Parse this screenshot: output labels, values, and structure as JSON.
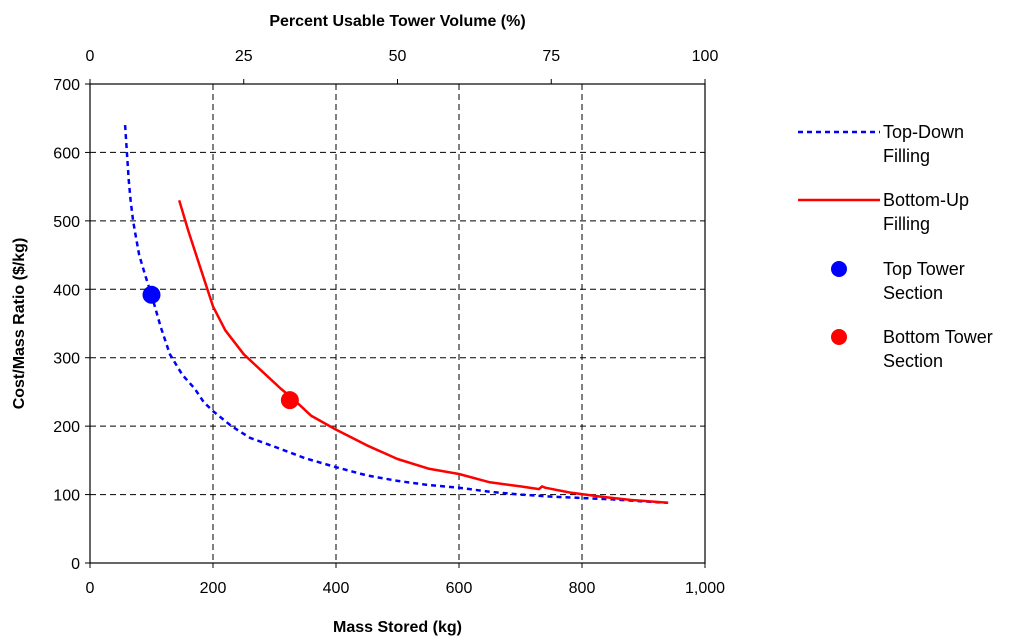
{
  "chart_data": {
    "type": "line",
    "xlabel": "Mass Stored (kg)",
    "ylabel": "Cost/Mass Ratio ($/kg)",
    "x2label": "Percent Usable Tower Volume (%)",
    "xlim": [
      0,
      1000
    ],
    "ylim": [
      0,
      700
    ],
    "x2lim": [
      0,
      100
    ],
    "x_ticks": [
      0,
      200,
      400,
      600,
      800,
      1000
    ],
    "x_tick_labels": [
      "0",
      "200",
      "400",
      "600",
      "800",
      "1,000"
    ],
    "y_ticks": [
      0,
      100,
      200,
      300,
      400,
      500,
      600,
      700
    ],
    "y_tick_labels": [
      "0",
      "100",
      "200",
      "300",
      "400",
      "500",
      "600",
      "700"
    ],
    "x2_ticks": [
      0,
      25,
      50,
      75,
      100
    ],
    "x2_tick_labels": [
      "0",
      "25",
      "50",
      "75",
      "100"
    ],
    "grid": true,
    "legend_position": "right",
    "series": [
      {
        "name": "Top-Down Filling",
        "kind": "line",
        "style": "dashed",
        "color": "#0000ff",
        "x": [
          57,
          60,
          63,
          66,
          70,
          75,
          80,
          90,
          100,
          115,
          130,
          150,
          170,
          185,
          200,
          230,
          260,
          300,
          350,
          400,
          450,
          500,
          550,
          600,
          650,
          700,
          750,
          800,
          850,
          900,
          940
        ],
        "y": [
          640,
          600,
          560,
          530,
          500,
          475,
          450,
          420,
          392,
          345,
          305,
          275,
          255,
          235,
          222,
          200,
          183,
          170,
          153,
          140,
          128,
          120,
          114,
          110,
          104,
          100,
          97,
          95,
          93,
          90,
          88
        ]
      },
      {
        "name": "Bottom-Up Filling",
        "kind": "line",
        "style": "solid",
        "color": "#ff0000",
        "x": [
          145,
          160,
          180,
          200,
          220,
          250,
          280,
          310,
          330,
          360,
          400,
          450,
          500,
          550,
          600,
          650,
          700,
          730,
          735,
          740,
          780,
          830,
          880,
          940
        ],
        "y": [
          530,
          485,
          430,
          375,
          340,
          305,
          280,
          255,
          240,
          215,
          195,
          172,
          152,
          138,
          130,
          118,
          112,
          108,
          112,
          110,
          103,
          97,
          92,
          88
        ]
      },
      {
        "name": "Top Tower Section",
        "kind": "marker",
        "color": "#0000ff",
        "x": [
          100
        ],
        "y": [
          392
        ]
      },
      {
        "name": "Bottom Tower Section",
        "kind": "marker",
        "color": "#ff0000",
        "x": [
          325
        ],
        "y": [
          238
        ]
      }
    ],
    "legend": [
      {
        "label_lines": [
          "Top-Down",
          "Filling"
        ],
        "symbol": "dashed-line",
        "color": "#0000ff"
      },
      {
        "label_lines": [
          "Bottom-Up",
          "Filling"
        ],
        "symbol": "solid-line",
        "color": "#ff0000"
      },
      {
        "label_lines": [
          "Top Tower",
          "Section"
        ],
        "symbol": "marker",
        "color": "#0000ff"
      },
      {
        "label_lines": [
          "Bottom Tower",
          "Section"
        ],
        "symbol": "marker",
        "color": "#ff0000"
      }
    ]
  }
}
